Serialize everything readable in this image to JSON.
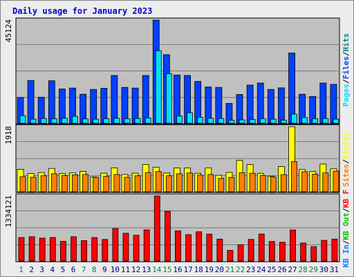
{
  "title": "Daily usage for January 2023",
  "colors": {
    "background": "#ececec",
    "panel": "#c0c0c0",
    "title": "#0000cc",
    "hits": "#008080",
    "files": "#0040ff",
    "pages": "#00e0ff",
    "visits": "#ffff00",
    "sites": "#ff8000",
    "kbin": "#0080ff",
    "kbout": "#00c000",
    "kbf": "#ff0000",
    "weekend_day": "#008040",
    "weekday": "#000080"
  },
  "chart_data": [
    {
      "type": "bar",
      "panel": "top",
      "y_max_label": "45124",
      "ylim": [
        0,
        45124
      ],
      "legend": [
        {
          "label": "Hits",
          "color_key": "hits"
        },
        {
          "label": "Files",
          "color_key": "files"
        },
        {
          "label": "Pages",
          "color_key": "pages"
        }
      ],
      "legend_separator": "/",
      "categories": [
        "1",
        "2",
        "3",
        "4",
        "5",
        "6",
        "7",
        "8",
        "9",
        "10",
        "11",
        "12",
        "13",
        "14",
        "15",
        "16",
        "17",
        "18",
        "19",
        "20",
        "21",
        "22",
        "23",
        "24",
        "25",
        "26",
        "27",
        "28",
        "29",
        "30",
        "31"
      ],
      "series": [
        {
          "name": "Hits",
          "values": [
            11300,
            18700,
            11400,
            18600,
            15000,
            15400,
            12700,
            14800,
            15300,
            20900,
            15700,
            15400,
            20900,
            45124,
            30000,
            21100,
            20900,
            18300,
            15900,
            15700,
            8700,
            12600,
            16700,
            17600,
            14800,
            15500,
            30700,
            12700,
            11700,
            17600,
            17000
          ]
        },
        {
          "name": "Files",
          "values": [
            11300,
            18700,
            11400,
            18600,
            15000,
            15400,
            12700,
            14800,
            15300,
            20900,
            15700,
            15400,
            20900,
            45124,
            30000,
            21100,
            20900,
            18300,
            15900,
            15700,
            8700,
            12600,
            16700,
            17600,
            14800,
            15500,
            30700,
            12700,
            11700,
            17600,
            17000
          ]
        },
        {
          "name": "Pages",
          "values": [
            3300,
            1800,
            2100,
            2000,
            2200,
            3000,
            1900,
            1800,
            2000,
            2200,
            2000,
            2100,
            2300,
            31700,
            21700,
            3200,
            4600,
            2600,
            2200,
            2100,
            1300,
            1500,
            1700,
            2000,
            1800,
            1400,
            4000,
            2500,
            2000,
            2100,
            1800
          ]
        }
      ]
    },
    {
      "type": "bar",
      "panel": "middle",
      "y_max_label": "1918",
      "ylim": [
        0,
        1918
      ],
      "legend": [
        {
          "label": "Visits",
          "color_key": "visits"
        },
        {
          "label": "Sites",
          "color_key": "sites"
        }
      ],
      "legend_separator": "/",
      "categories": [
        "1",
        "2",
        "3",
        "4",
        "5",
        "6",
        "7",
        "8",
        "9",
        "10",
        "11",
        "12",
        "13",
        "14",
        "15",
        "16",
        "17",
        "18",
        "19",
        "20",
        "21",
        "22",
        "23",
        "24",
        "25",
        "26",
        "27",
        "28",
        "29",
        "30",
        "31"
      ],
      "series": [
        {
          "name": "Visits",
          "values": [
            664,
            542,
            570,
            689,
            535,
            557,
            604,
            438,
            550,
            707,
            510,
            550,
            808,
            727,
            555,
            702,
            702,
            546,
            706,
            488,
            572,
            928,
            804,
            546,
            461,
            744,
            1918,
            658,
            597,
            818,
            678
          ]
        },
        {
          "name": "Sites",
          "values": [
            447,
            429,
            474,
            533,
            479,
            502,
            511,
            428,
            456,
            511,
            428,
            474,
            569,
            596,
            474,
            531,
            555,
            493,
            511,
            397,
            425,
            562,
            548,
            480,
            434,
            508,
            893,
            592,
            521,
            557,
            611
          ]
        }
      ]
    },
    {
      "type": "bar",
      "panel": "bottom",
      "y_max_label": "1334121",
      "ylim": [
        0,
        1334121
      ],
      "legend": [
        {
          "label": "KB F",
          "color_key": "kbf"
        },
        {
          "label": "KB Out",
          "color_key": "kbout"
        },
        {
          "label": "KB In",
          "color_key": "kbin"
        }
      ],
      "legend_separator": "/",
      "categories": [
        "1",
        "2",
        "3",
        "4",
        "5",
        "6",
        "7",
        "8",
        "9",
        "10",
        "11",
        "12",
        "13",
        "14",
        "15",
        "16",
        "17",
        "18",
        "19",
        "20",
        "21",
        "22",
        "23",
        "24",
        "25",
        "26",
        "27",
        "28",
        "29",
        "30",
        "31"
      ],
      "series": [
        {
          "name": "KB F",
          "values": [
            483000,
            499000,
            471000,
            483000,
            404000,
            499000,
            420000,
            482000,
            443000,
            667000,
            570000,
            529000,
            640000,
            1334121,
            1020000,
            620000,
            542000,
            600000,
            553000,
            451000,
            219000,
            336000,
            444000,
            554000,
            402000,
            386000,
            638000,
            370000,
            296000,
            425000,
            451000
          ]
        }
      ]
    }
  ],
  "x_axis": {
    "labels": [
      "1",
      "2",
      "3",
      "4",
      "5",
      "6",
      "7",
      "8",
      "9",
      "10",
      "11",
      "12",
      "13",
      "14",
      "15",
      "16",
      "17",
      "18",
      "19",
      "20",
      "21",
      "22",
      "23",
      "24",
      "25",
      "26",
      "27",
      "28",
      "29",
      "30",
      "31"
    ],
    "weekend_indexes": [
      0,
      6,
      7,
      13,
      14,
      20,
      21,
      27,
      28
    ]
  }
}
